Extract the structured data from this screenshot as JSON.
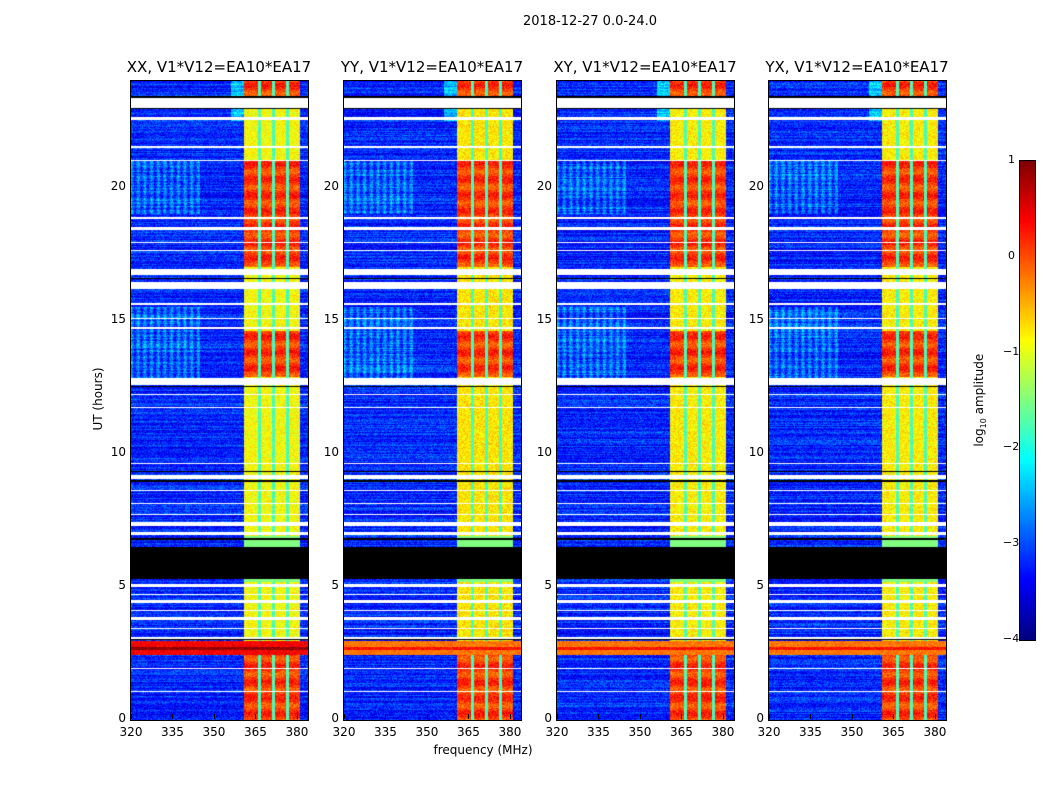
{
  "chart_data": {
    "type": "heatmap",
    "suptitle": "2018-12-27 0.0-24.0",
    "xlabel": "frequency (MHz)",
    "ylabel": "UT (hours)",
    "xlim": [
      320,
      384
    ],
    "ylim": [
      0,
      24
    ],
    "xticks": [
      "320",
      "335",
      "350",
      "365",
      "380"
    ],
    "xtick_values": [
      320,
      335,
      350,
      365,
      380
    ],
    "yticks": [
      "0",
      "5",
      "10",
      "15",
      "20"
    ],
    "ytick_values": [
      0,
      5,
      10,
      15,
      20
    ],
    "panels": [
      {
        "title": "XX, V1*V12=EA10*EA17",
        "strength": 1.0
      },
      {
        "title": "YY, V1*V12=EA10*EA17",
        "strength": 0.85
      },
      {
        "title": "XY, V1*V12=EA10*EA17",
        "strength": 0.9
      },
      {
        "title": "YX, V1*V12=EA10*EA17",
        "strength": 0.9
      }
    ],
    "colorbar": {
      "label": "log10 amplitude",
      "label_main": "log",
      "label_sub": "10",
      "label_rest": " amplitude",
      "range": [
        -4,
        1
      ],
      "ticks": [
        "1",
        "0",
        "−1",
        "−2",
        "−3",
        "−4"
      ],
      "tick_values": [
        1,
        0,
        -1,
        -2,
        -3,
        -4
      ],
      "colormap": "jet"
    },
    "background_level": -3.2,
    "rfi_band_mhz": [
      361,
      381
    ],
    "rfi_gap_channels_mhz": [
      366.5,
      371.5,
      376.5
    ],
    "flagged_hours_white": [
      [
        23.0,
        23.35
      ],
      [
        22.55,
        22.65
      ],
      [
        21.5,
        21.55
      ],
      [
        21.0,
        21.05
      ],
      [
        18.8,
        18.9
      ],
      [
        18.4,
        18.5
      ],
      [
        17.9,
        17.95
      ],
      [
        17.6,
        17.65
      ],
      [
        16.7,
        16.95
      ],
      [
        16.2,
        16.45
      ],
      [
        15.6,
        15.65
      ],
      [
        15.05,
        15.1
      ],
      [
        14.7,
        14.75
      ],
      [
        12.6,
        12.85
      ],
      [
        12.2,
        12.25
      ],
      [
        11.7,
        11.75
      ],
      [
        9.6,
        9.65
      ],
      [
        9.05,
        9.2
      ],
      [
        8.6,
        8.65
      ],
      [
        8.1,
        8.15
      ],
      [
        7.7,
        7.75
      ],
      [
        7.3,
        7.45
      ],
      [
        6.95,
        7.05
      ],
      [
        5.0,
        5.1
      ],
      [
        4.7,
        4.75
      ],
      [
        4.4,
        4.5
      ],
      [
        4.1,
        4.15
      ],
      [
        3.75,
        3.85
      ],
      [
        3.4,
        3.45
      ],
      [
        3.05,
        3.1
      ],
      [
        1.9,
        1.95
      ],
      [
        1.05,
        1.1
      ]
    ],
    "flagged_hours_black": [
      [
        5.3,
        6.5
      ],
      [
        6.75,
        6.85
      ],
      [
        12.5,
        12.55
      ],
      [
        9.3,
        9.35
      ],
      [
        16.55,
        16.6
      ],
      [
        22.95,
        23.0
      ],
      [
        23.38,
        23.42
      ],
      [
        3.0,
        3.03
      ],
      [
        8.95,
        9.0
      ]
    ],
    "bright_hours": [
      [
        23.4,
        24
      ],
      [
        17.0,
        21.0
      ],
      [
        12.9,
        14.6
      ],
      [
        0,
        2.5
      ]
    ],
    "strong_broadband_hours": [
      2.45,
      2.95
    ]
  }
}
